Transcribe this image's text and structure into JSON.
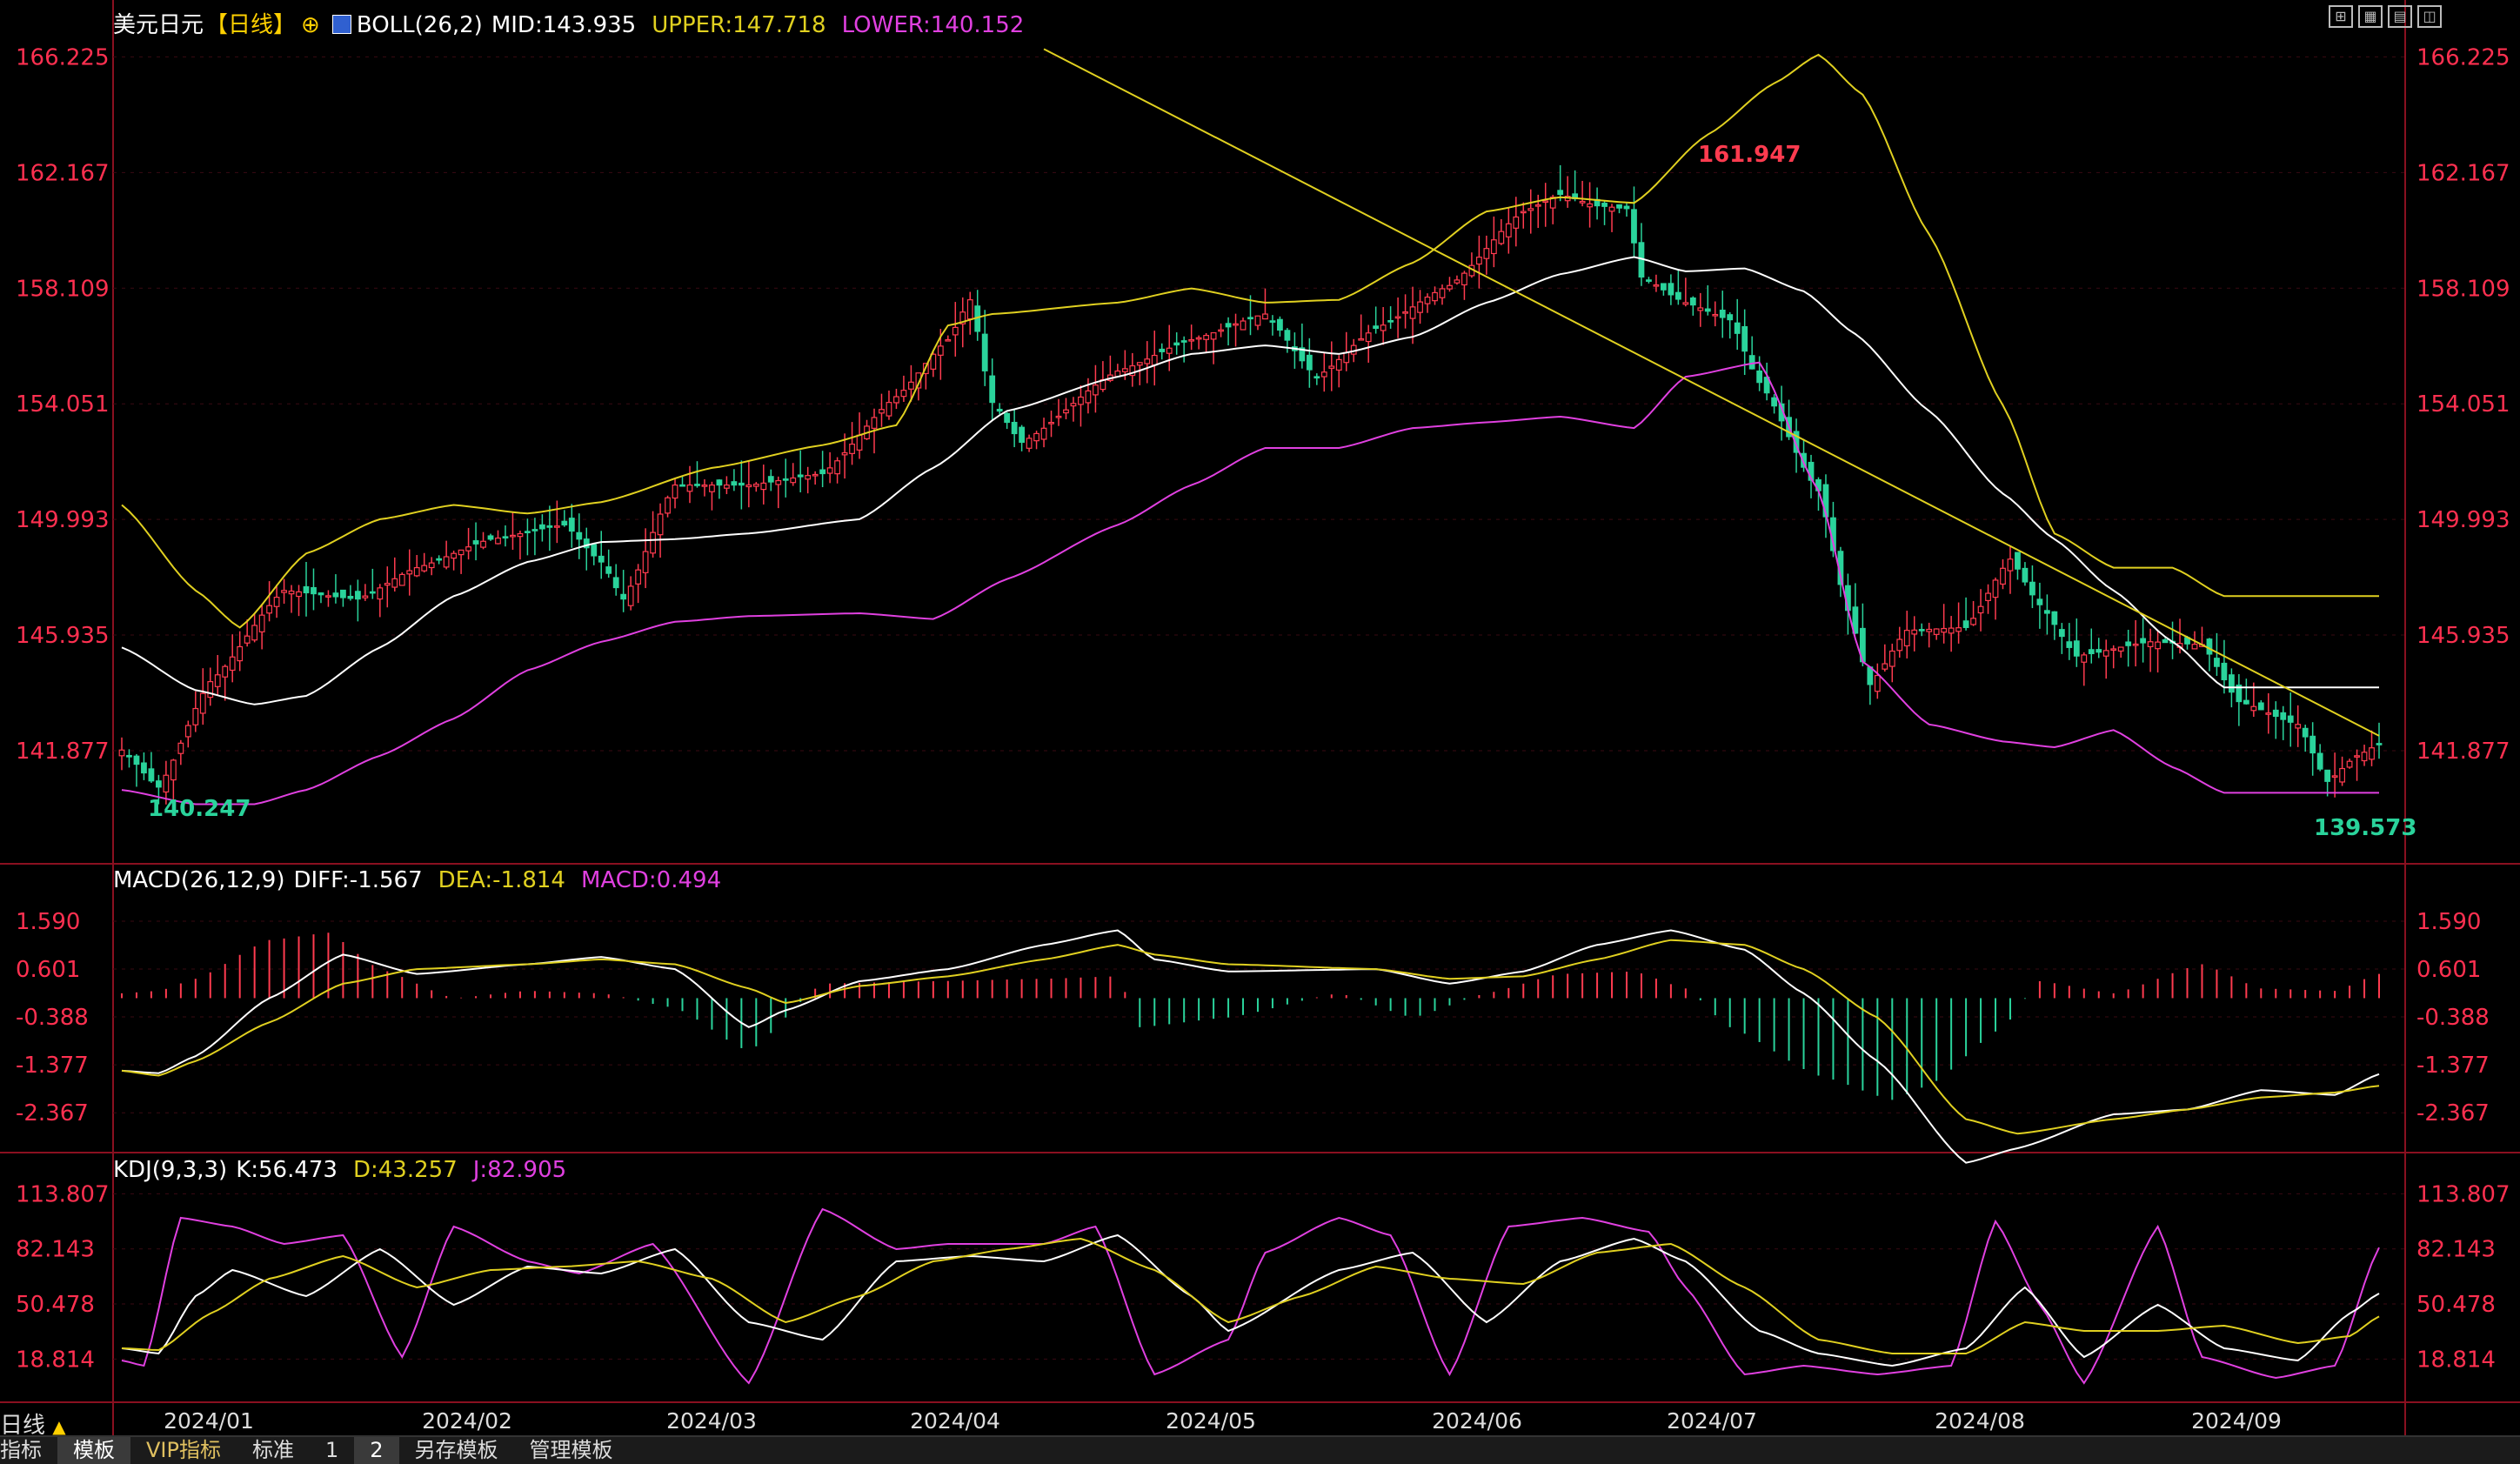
{
  "header": {
    "symbol": "美元日元",
    "period_tag": "【日线】",
    "boll_label": "BOLL(26,2)",
    "boll_mid": "MID:143.935",
    "boll_upper": "UPPER:147.718",
    "boll_lower": "LOWER:140.152"
  },
  "macd_header": {
    "label": "MACD(26,12,9)",
    "diff": "DIFF:-1.567",
    "dea": "DEA:-1.814",
    "macd": "MACD:0.494"
  },
  "kdj_header": {
    "label": "KDJ(9,3,3)",
    "k": "K:56.473",
    "d": "D:43.257",
    "j": "J:82.905"
  },
  "period_selector": "日线",
  "bottom_tabs": [
    {
      "label": "指标"
    },
    {
      "label": "模板"
    },
    {
      "label": "VIP指标"
    },
    {
      "label": "标准"
    },
    {
      "label": "1"
    },
    {
      "label": "2"
    },
    {
      "label": "另存模板"
    },
    {
      "label": "管理模板"
    }
  ],
  "toolbar_icons": [
    "layout-icon",
    "grid-icon",
    "chart-icon",
    "tile-icon"
  ],
  "colors": {
    "up": "#ff3b4f",
    "down": "#2ad39b",
    "boll_upper": "#e0d020",
    "boll_mid": "#ffffff",
    "boll_lower": "#e040e0",
    "axis_text": "#ff3050",
    "diff": "#ffffff",
    "dea": "#e0d020",
    "j": "#e040e0"
  },
  "chart_data": [
    {
      "type": "candlestick",
      "ylim": [
        138.0,
        167.0
      ],
      "y_ticks": [
        "166.225",
        "162.167",
        "158.109",
        "154.051",
        "149.993",
        "145.935",
        "141.877"
      ],
      "x_ticks": [
        "2024/01",
        "2024/02",
        "2024/03",
        "2024/04",
        "2024/05",
        "2024/06",
        "2024/07",
        "2024/08",
        "2024/09"
      ],
      "annotations": {
        "high": "161.947",
        "low_left": "140.247",
        "low_right": "139.573"
      },
      "anchors_close": [
        [
          0,
          141.9
        ],
        [
          5,
          140.6
        ],
        [
          12,
          144.3
        ],
        [
          22,
          147.5
        ],
        [
          32,
          147.2
        ],
        [
          40,
          148.3
        ],
        [
          50,
          149.3
        ],
        [
          60,
          149.8
        ],
        [
          65,
          148.5
        ],
        [
          68,
          147.2
        ],
        [
          75,
          151.2
        ],
        [
          85,
          151.2
        ],
        [
          95,
          151.6
        ],
        [
          105,
          154.3
        ],
        [
          112,
          156.3
        ],
        [
          115,
          157.7
        ],
        [
          118,
          154.1
        ],
        [
          122,
          152.7
        ],
        [
          135,
          155.2
        ],
        [
          145,
          156.3
        ],
        [
          155,
          157.2
        ],
        [
          162,
          155.0
        ],
        [
          170,
          156.7
        ],
        [
          180,
          158.2
        ],
        [
          190,
          160.8
        ],
        [
          195,
          161.4
        ],
        [
          200,
          161.0
        ],
        [
          204,
          160.9
        ],
        [
          206,
          158.5
        ],
        [
          212,
          157.6
        ],
        [
          218,
          157.0
        ],
        [
          222,
          154.8
        ],
        [
          230,
          151.0
        ],
        [
          234,
          146.8
        ],
        [
          237,
          144.2
        ],
        [
          242,
          146.1
        ],
        [
          250,
          146.2
        ],
        [
          256,
          148.6
        ],
        [
          260,
          147.0
        ],
        [
          265,
          145.2
        ],
        [
          275,
          145.7
        ],
        [
          282,
          145.6
        ],
        [
          287,
          143.6
        ],
        [
          295,
          142.8
        ],
        [
          299,
          140.8
        ],
        [
          303,
          141.7
        ],
        [
          306,
          142.1
        ]
      ],
      "upper": [
        [
          0,
          150.5
        ],
        [
          10,
          147.5
        ],
        [
          16,
          146.2
        ],
        [
          25,
          148.8
        ],
        [
          35,
          150.0
        ],
        [
          45,
          150.5
        ],
        [
          55,
          150.2
        ],
        [
          65,
          150.6
        ],
        [
          80,
          151.8
        ],
        [
          95,
          152.6
        ],
        [
          105,
          153.3
        ],
        [
          112,
          156.8
        ],
        [
          118,
          157.2
        ],
        [
          135,
          157.6
        ],
        [
          145,
          158.1
        ],
        [
          155,
          157.6
        ],
        [
          165,
          157.7
        ],
        [
          175,
          159.0
        ],
        [
          185,
          160.8
        ],
        [
          195,
          161.3
        ],
        [
          205,
          161.1
        ],
        [
          215,
          163.5
        ],
        [
          224,
          165.3
        ],
        [
          230,
          166.3
        ],
        [
          236,
          164.9
        ],
        [
          245,
          160.0
        ],
        [
          255,
          154.0
        ],
        [
          262,
          149.5
        ],
        [
          270,
          148.3
        ],
        [
          278,
          148.3
        ],
        [
          285,
          147.3
        ]
      ],
      "mid": [
        [
          0,
          145.5
        ],
        [
          10,
          144.0
        ],
        [
          18,
          143.5
        ],
        [
          25,
          143.8
        ],
        [
          35,
          145.5
        ],
        [
          45,
          147.3
        ],
        [
          55,
          148.5
        ],
        [
          65,
          149.2
        ],
        [
          75,
          149.3
        ],
        [
          85,
          149.5
        ],
        [
          100,
          150.0
        ],
        [
          110,
          151.8
        ],
        [
          120,
          153.8
        ],
        [
          135,
          155.0
        ],
        [
          145,
          155.8
        ],
        [
          155,
          156.1
        ],
        [
          165,
          155.8
        ],
        [
          175,
          156.4
        ],
        [
          185,
          157.6
        ],
        [
          195,
          158.6
        ],
        [
          205,
          159.2
        ],
        [
          212,
          158.7
        ],
        [
          220,
          158.8
        ],
        [
          228,
          158.0
        ],
        [
          235,
          156.5
        ],
        [
          245,
          153.8
        ],
        [
          255,
          150.9
        ],
        [
          262,
          149.3
        ],
        [
          270,
          147.5
        ],
        [
          278,
          145.7
        ],
        [
          285,
          144.1
        ]
      ],
      "lower": [
        [
          0,
          140.5
        ],
        [
          10,
          140.0
        ],
        [
          18,
          140.0
        ],
        [
          25,
          140.5
        ],
        [
          35,
          141.7
        ],
        [
          45,
          143.0
        ],
        [
          55,
          144.7
        ],
        [
          65,
          145.7
        ],
        [
          75,
          146.4
        ],
        [
          85,
          146.6
        ],
        [
          100,
          146.7
        ],
        [
          110,
          146.5
        ],
        [
          120,
          147.9
        ],
        [
          135,
          149.8
        ],
        [
          145,
          151.2
        ],
        [
          155,
          152.5
        ],
        [
          165,
          152.5
        ],
        [
          175,
          153.2
        ],
        [
          185,
          153.4
        ],
        [
          195,
          153.6
        ],
        [
          205,
          153.2
        ],
        [
          212,
          155.0
        ],
        [
          222,
          155.5
        ],
        [
          230,
          151.0
        ],
        [
          236,
          145.0
        ],
        [
          245,
          142.8
        ],
        [
          255,
          142.2
        ],
        [
          262,
          142.0
        ],
        [
          270,
          142.6
        ],
        [
          278,
          141.3
        ],
        [
          285,
          140.4
        ]
      ],
      "trendline": [
        [
          125,
          166.5
        ],
        [
          306,
          142.4
        ]
      ]
    },
    {
      "type": "macd",
      "ylim": [
        -3.1,
        2.2
      ],
      "y_ticks": [
        "1.590",
        "0.601",
        "-0.388",
        "-1.377",
        "-2.367"
      ],
      "diff": [
        [
          0,
          -1.5
        ],
        [
          5,
          -1.55
        ],
        [
          10,
          -1.2
        ],
        [
          20,
          0.0
        ],
        [
          30,
          0.9
        ],
        [
          40,
          0.5
        ],
        [
          55,
          0.7
        ],
        [
          65,
          0.85
        ],
        [
          75,
          0.6
        ],
        [
          85,
          -0.6
        ],
        [
          90,
          -0.25
        ],
        [
          100,
          0.35
        ],
        [
          112,
          0.6
        ],
        [
          125,
          1.1
        ],
        [
          135,
          1.4
        ],
        [
          140,
          0.8
        ],
        [
          150,
          0.55
        ],
        [
          170,
          0.6
        ],
        [
          180,
          0.3
        ],
        [
          190,
          0.55
        ],
        [
          200,
          1.1
        ],
        [
          210,
          1.4
        ],
        [
          220,
          1.0
        ],
        [
          228,
          0.1
        ],
        [
          238,
          -1.3
        ],
        [
          250,
          -3.4
        ],
        [
          257,
          -3.1
        ],
        [
          270,
          -2.4
        ],
        [
          280,
          -2.3
        ],
        [
          290,
          -1.9
        ],
        [
          300,
          -2.0
        ],
        [
          306,
          -1.57
        ]
      ],
      "dea": [
        [
          0,
          -1.5
        ],
        [
          5,
          -1.6
        ],
        [
          10,
          -1.3
        ],
        [
          20,
          -0.5
        ],
        [
          30,
          0.3
        ],
        [
          40,
          0.6
        ],
        [
          55,
          0.7
        ],
        [
          65,
          0.8
        ],
        [
          75,
          0.7
        ],
        [
          85,
          0.2
        ],
        [
          90,
          -0.1
        ],
        [
          100,
          0.25
        ],
        [
          112,
          0.45
        ],
        [
          125,
          0.8
        ],
        [
          135,
          1.1
        ],
        [
          140,
          0.9
        ],
        [
          150,
          0.7
        ],
        [
          170,
          0.6
        ],
        [
          180,
          0.4
        ],
        [
          190,
          0.45
        ],
        [
          200,
          0.8
        ],
        [
          210,
          1.2
        ],
        [
          220,
          1.1
        ],
        [
          228,
          0.6
        ],
        [
          238,
          -0.4
        ],
        [
          250,
          -2.5
        ],
        [
          257,
          -2.8
        ],
        [
          270,
          -2.5
        ],
        [
          280,
          -2.3
        ],
        [
          290,
          -2.05
        ],
        [
          300,
          -1.95
        ],
        [
          306,
          -1.81
        ]
      ],
      "hist": [
        [
          0,
          0.1
        ],
        [
          5,
          0.15
        ],
        [
          10,
          0.4
        ],
        [
          20,
          1.2
        ],
        [
          28,
          1.35
        ],
        [
          35,
          0.6
        ],
        [
          45,
          0.0
        ],
        [
          55,
          0.15
        ],
        [
          65,
          0.1
        ],
        [
          75,
          -0.2
        ],
        [
          85,
          -1.1
        ],
        [
          95,
          0.3
        ],
        [
          110,
          0.35
        ],
        [
          125,
          0.4
        ],
        [
          135,
          0.45
        ],
        [
          138,
          -0.6
        ],
        [
          150,
          -0.4
        ],
        [
          165,
          0.1
        ],
        [
          175,
          -0.4
        ],
        [
          185,
          0.1
        ],
        [
          195,
          0.5
        ],
        [
          205,
          0.55
        ],
        [
          212,
          0.2
        ],
        [
          218,
          -0.6
        ],
        [
          230,
          -1.6
        ],
        [
          240,
          -2.1
        ],
        [
          245,
          -1.8
        ],
        [
          255,
          -0.6
        ],
        [
          260,
          0.35
        ],
        [
          270,
          0.1
        ],
        [
          282,
          0.7
        ],
        [
          290,
          0.2
        ],
        [
          300,
          0.15
        ],
        [
          306,
          0.5
        ]
      ]
    },
    {
      "type": "kdj",
      "ylim": [
        -5,
        120
      ],
      "y_ticks": [
        "113.807",
        "82.143",
        "50.478",
        "18.814"
      ],
      "k": [
        [
          0,
          25
        ],
        [
          5,
          22
        ],
        [
          10,
          55
        ],
        [
          15,
          70
        ],
        [
          25,
          55
        ],
        [
          35,
          82
        ],
        [
          45,
          50
        ],
        [
          55,
          72
        ],
        [
          65,
          68
        ],
        [
          75,
          82
        ],
        [
          85,
          40
        ],
        [
          95,
          30
        ],
        [
          105,
          75
        ],
        [
          115,
          78
        ],
        [
          125,
          75
        ],
        [
          135,
          90
        ],
        [
          145,
          55
        ],
        [
          150,
          35
        ],
        [
          165,
          70
        ],
        [
          175,
          80
        ],
        [
          185,
          40
        ],
        [
          195,
          75
        ],
        [
          205,
          88
        ],
        [
          212,
          75
        ],
        [
          222,
          35
        ],
        [
          230,
          22
        ],
        [
          240,
          15
        ],
        [
          250,
          25
        ],
        [
          258,
          60
        ],
        [
          266,
          20
        ],
        [
          276,
          50
        ],
        [
          285,
          25
        ],
        [
          295,
          18
        ],
        [
          302,
          45
        ],
        [
          306,
          56.5
        ]
      ],
      "d": [
        [
          0,
          25
        ],
        [
          5,
          24
        ],
        [
          12,
          45
        ],
        [
          20,
          65
        ],
        [
          30,
          78
        ],
        [
          40,
          60
        ],
        [
          50,
          70
        ],
        [
          60,
          72
        ],
        [
          70,
          75
        ],
        [
          80,
          65
        ],
        [
          90,
          40
        ],
        [
          100,
          55
        ],
        [
          110,
          75
        ],
        [
          120,
          82
        ],
        [
          130,
          88
        ],
        [
          140,
          70
        ],
        [
          150,
          40
        ],
        [
          160,
          55
        ],
        [
          170,
          72
        ],
        [
          180,
          65
        ],
        [
          190,
          62
        ],
        [
          200,
          80
        ],
        [
          210,
          85
        ],
        [
          220,
          60
        ],
        [
          230,
          30
        ],
        [
          240,
          22
        ],
        [
          250,
          22
        ],
        [
          258,
          40
        ],
        [
          266,
          35
        ],
        [
          276,
          35
        ],
        [
          285,
          38
        ],
        [
          295,
          28
        ],
        [
          302,
          32
        ],
        [
          306,
          43.3
        ]
      ],
      "j": [
        [
          0,
          18
        ],
        [
          3,
          15
        ],
        [
          8,
          100
        ],
        [
          15,
          95
        ],
        [
          22,
          85
        ],
        [
          30,
          90
        ],
        [
          38,
          20
        ],
        [
          45,
          95
        ],
        [
          55,
          75
        ],
        [
          62,
          68
        ],
        [
          72,
          85
        ],
        [
          85,
          5
        ],
        [
          95,
          105
        ],
        [
          105,
          82
        ],
        [
          112,
          85
        ],
        [
          125,
          85
        ],
        [
          132,
          95
        ],
        [
          140,
          10
        ],
        [
          150,
          30
        ],
        [
          155,
          80
        ],
        [
          165,
          100
        ],
        [
          172,
          90
        ],
        [
          180,
          10
        ],
        [
          188,
          95
        ],
        [
          198,
          100
        ],
        [
          207,
          92
        ],
        [
          212,
          60
        ],
        [
          220,
          10
        ],
        [
          228,
          15
        ],
        [
          238,
          10
        ],
        [
          248,
          15
        ],
        [
          254,
          98
        ],
        [
          260,
          50
        ],
        [
          266,
          5
        ],
        [
          276,
          95
        ],
        [
          282,
          20
        ],
        [
          292,
          8
        ],
        [
          300,
          15
        ],
        [
          306,
          82.9
        ]
      ]
    }
  ]
}
